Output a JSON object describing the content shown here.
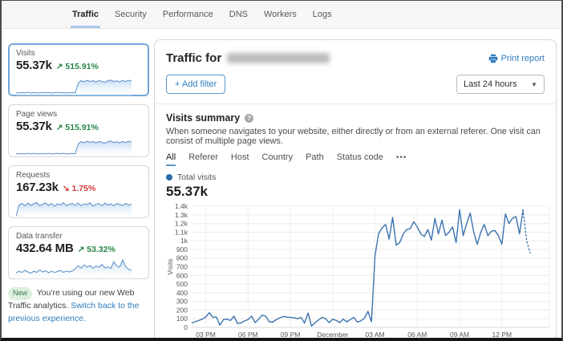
{
  "nav": {
    "tabs": [
      {
        "label": "Traffic",
        "active": true
      },
      {
        "label": "Security",
        "active": false
      },
      {
        "label": "Performance",
        "active": false
      },
      {
        "label": "DNS",
        "active": false
      },
      {
        "label": "Workers",
        "active": false
      },
      {
        "label": "Logs",
        "active": false
      }
    ]
  },
  "sidebar": {
    "cards": [
      {
        "label": "Visits",
        "value": "55.37k",
        "arrow": "↗",
        "delta": "515.91%",
        "trend": "up",
        "selected": true,
        "sparkline": [
          14,
          12,
          15,
          13,
          16,
          12,
          15,
          14,
          12,
          16,
          13,
          15,
          12,
          14,
          16,
          13,
          15,
          12,
          14,
          15,
          13,
          62,
          74,
          68,
          76,
          70,
          74,
          68,
          75,
          70,
          66,
          74,
          77,
          70,
          73,
          68,
          75,
          70,
          76,
          72
        ]
      },
      {
        "label": "Page views",
        "value": "55.37k",
        "arrow": "↗",
        "delta": "515.91%",
        "trend": "up",
        "selected": false,
        "sparkline": [
          14,
          13,
          15,
          12,
          16,
          13,
          15,
          14,
          12,
          15,
          13,
          16,
          12,
          14,
          15,
          13,
          16,
          12,
          14,
          15,
          13,
          62,
          74,
          68,
          76,
          70,
          74,
          68,
          75,
          70,
          66,
          74,
          77,
          70,
          73,
          68,
          75,
          70,
          76,
          72
        ]
      },
      {
        "label": "Requests",
        "value": "167.23k",
        "arrow": "↘",
        "delta": "1.75%",
        "trend": "down",
        "selected": false,
        "sparkline": [
          5,
          62,
          70,
          58,
          72,
          60,
          68,
          74,
          58,
          66,
          72,
          60,
          70,
          56,
          68,
          62,
          74,
          58,
          66,
          70,
          60,
          72,
          58,
          68,
          64,
          74,
          56,
          66,
          70,
          58,
          72,
          62,
          68,
          58,
          70,
          64,
          60,
          70,
          62,
          66
        ]
      },
      {
        "label": "Data transfer",
        "value": "432.64 MB",
        "arrow": "↗",
        "delta": "53.32%",
        "trend": "up",
        "selected": false,
        "sparkline": [
          28,
          36,
          30,
          40,
          32,
          26,
          36,
          30,
          42,
          32,
          38,
          28,
          36,
          30,
          34,
          40,
          30,
          36,
          32,
          38,
          48,
          64,
          52,
          68,
          56,
          64,
          50,
          62,
          56,
          70,
          52,
          58,
          50,
          84,
          62,
          56,
          92,
          60,
          46,
          40
        ]
      }
    ],
    "notice": {
      "badge": "New",
      "text": "You're using our new Web Traffic analytics.",
      "link": "Switch back to the previous experience."
    }
  },
  "main": {
    "title_prefix": "Traffic for",
    "print_report": "Print report",
    "add_filter": "+ Add filter",
    "time_range": "Last 24 hours",
    "section": {
      "title": "Visits summary",
      "help_glyph": "?",
      "description": "When someone navigates to your website, either directly or from an external referer. One visit can consist of multiple page views.",
      "tabs": [
        "All",
        "Referer",
        "Host",
        "Country",
        "Path",
        "Status code"
      ],
      "more_label": "•••",
      "legend": "Total visits",
      "total": "55.37k"
    }
  },
  "colors": {
    "accent_blue": "#2f7dbe",
    "chart_line": "#3c74ae",
    "legend_dot": "#2b6cab",
    "spark_line": "#5c90c8",
    "spark_fill": "#bcd8f0",
    "delta_up": "#278547",
    "delta_down": "#cf3a36",
    "active_tab_underline": "#a9cbe8"
  },
  "chart_data": {
    "type": "line",
    "title": "Visits summary",
    "series_name": "Total visits",
    "ylabel": "Visits",
    "ylim": [
      0,
      1400
    ],
    "grid": true,
    "ytick_labels": [
      "0",
      "100",
      "200",
      "300",
      "400",
      "500",
      "600",
      "700",
      "800",
      "900",
      "1k",
      "1.1k",
      "1.2k",
      "1.3k",
      "1.4k"
    ],
    "xtick_labels": [
      "03 PM",
      "06 PM",
      "09 PM",
      "December",
      "03 AM",
      "06 AM",
      "09 AM",
      "12 PM"
    ],
    "xtick_indices": [
      4,
      16,
      28,
      40,
      52,
      64,
      76,
      88
    ],
    "dashed_from_index": 94,
    "values": [
      50,
      65,
      80,
      95,
      120,
      170,
      115,
      120,
      25,
      90,
      95,
      80,
      130,
      45,
      50,
      75,
      90,
      130,
      55,
      95,
      140,
      130,
      65,
      60,
      90,
      110,
      125,
      120,
      115,
      110,
      100,
      115,
      50,
      165,
      15,
      55,
      85,
      115,
      100,
      55,
      95,
      80,
      55,
      95,
      65,
      90,
      115,
      60,
      75,
      105,
      185,
      65,
      830,
      1080,
      1150,
      1190,
      1020,
      1270,
      950,
      980,
      1080,
      1130,
      1140,
      1220,
      1160,
      1080,
      1050,
      1130,
      1010,
      1260,
      1080,
      1240,
      1060,
      1100,
      1160,
      980,
      1360,
      1060,
      1200,
      1320,
      1100,
      960,
      1100,
      1190,
      1060,
      1110,
      1120,
      1060,
      960,
      1310,
      1200,
      1260,
      1280,
      1080,
      1360,
      1000,
      860
    ]
  }
}
